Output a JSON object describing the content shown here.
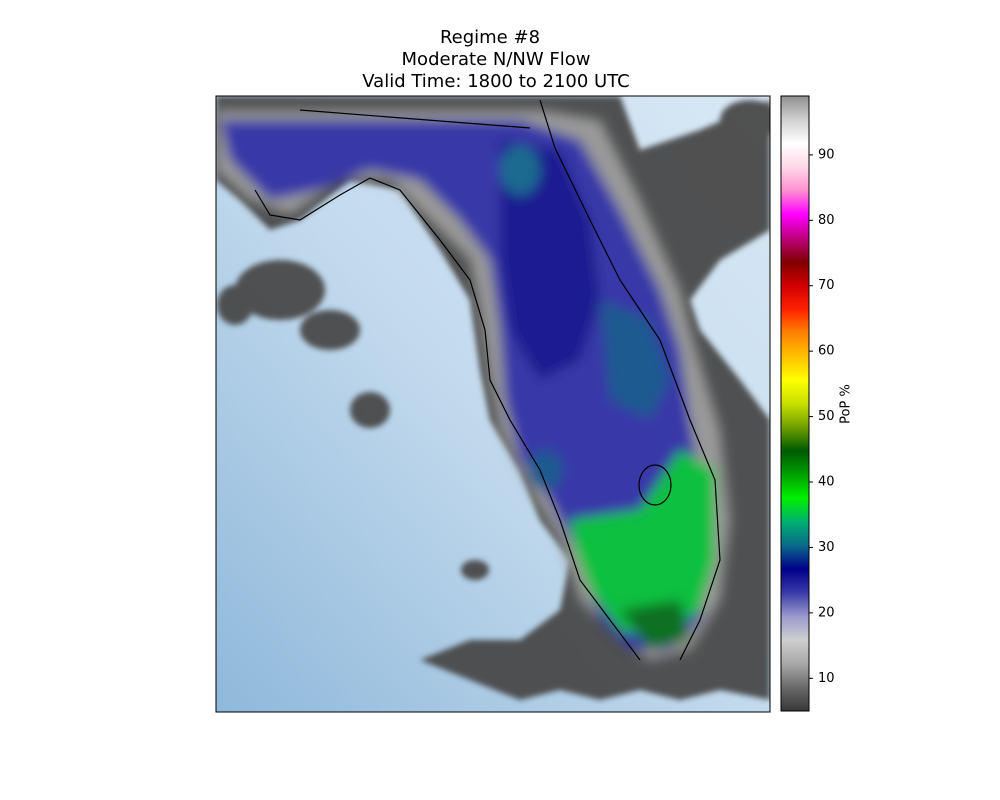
{
  "chart_data": {
    "type": "map",
    "title": [
      "Regime #8",
      "Moderate N/NW Flow",
      "Valid Time: 1800 to 2100 UTC"
    ],
    "colorbar": {
      "label": "PoP %",
      "lim": [
        5,
        99
      ],
      "ticks": [
        10,
        20,
        30,
        40,
        50,
        60,
        70,
        80,
        90
      ],
      "colors": [
        "#383838",
        "#6a6a6a",
        "#a8a8a8",
        "#cfcfcf",
        "#9a9acc",
        "#3a3aa8",
        "#00008a",
        "#0a6a8a",
        "#00b070",
        "#00f000",
        "#00a000",
        "#005a00",
        "#70a000",
        "#c8e000",
        "#ffff00",
        "#ffc000",
        "#ff8000",
        "#ff2000",
        "#d00000",
        "#800000",
        "#c00080",
        "#ff00ff",
        "#ff90d0",
        "#ffd8e8",
        "#ffffff",
        "#d0d0d0",
        "#909090"
      ]
    }
  }
}
